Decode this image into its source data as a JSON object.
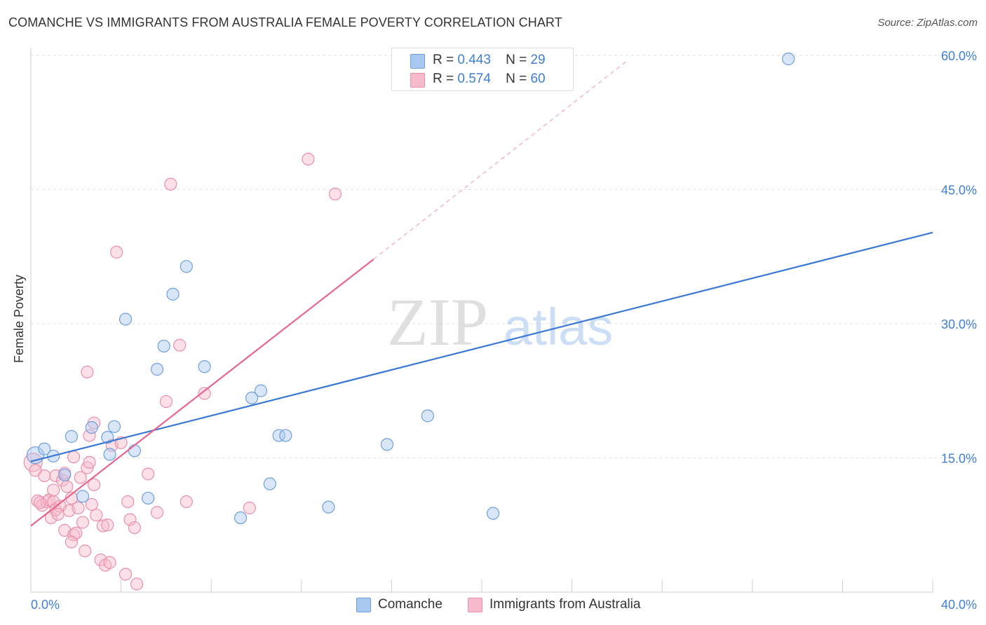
{
  "title": "COMANCHE VS IMMIGRANTS FROM AUSTRALIA FEMALE POVERTY CORRELATION CHART",
  "source": "Source: ZipAtlas.com",
  "watermark": {
    "zip": "ZIP",
    "atlas": "atlas"
  },
  "legend": {
    "r_label": "R =",
    "n_label": "N =",
    "series": [
      {
        "name": "Comanche",
        "r": "0.443",
        "n": "29",
        "color": "#a9c8ef",
        "stroke": "#6e9fdc"
      },
      {
        "name": "Immigrants from Australia",
        "r": "0.574",
        "n": "60",
        "color": "#f7bacb",
        "stroke": "#ea8fab"
      }
    ]
  },
  "chart_data": {
    "type": "scatter",
    "title": "COMANCHE VS IMMIGRANTS FROM AUSTRALIA FEMALE POVERTY CORRELATION CHART",
    "xlabel": "",
    "ylabel": "Female Poverty",
    "xlim": [
      0,
      40
    ],
    "ylim": [
      0,
      60
    ],
    "x_tick_labels": [
      "0.0%",
      "40.0%"
    ],
    "y_ticks": [
      15,
      30,
      45,
      60
    ],
    "y_tick_labels": [
      "15.0%",
      "30.0%",
      "45.0%",
      "60.0%"
    ],
    "grid": true,
    "series": [
      {
        "name": "Comanche",
        "color": "#a9c8ef",
        "line_color": "#3a78d4",
        "r": 0.443,
        "n": 29,
        "trend": {
          "x0": 0,
          "y0": 14.6,
          "x1": 40,
          "y1": 40.2
        },
        "points": [
          [
            0.2,
            15.3
          ],
          [
            0.6,
            16.0
          ],
          [
            1.0,
            15.2
          ],
          [
            1.5,
            13.1
          ],
          [
            1.8,
            17.4
          ],
          [
            2.3,
            10.7
          ],
          [
            2.7,
            18.4
          ],
          [
            3.4,
            17.3
          ],
          [
            3.5,
            15.4
          ],
          [
            3.7,
            18.5
          ],
          [
            4.2,
            30.5
          ],
          [
            4.6,
            15.8
          ],
          [
            5.2,
            10.5
          ],
          [
            5.6,
            24.9
          ],
          [
            5.9,
            27.5
          ],
          [
            6.3,
            33.3
          ],
          [
            6.9,
            36.4
          ],
          [
            7.7,
            25.2
          ],
          [
            9.3,
            8.3
          ],
          [
            9.8,
            21.7
          ],
          [
            10.2,
            22.5
          ],
          [
            10.6,
            12.1
          ],
          [
            11.0,
            17.5
          ],
          [
            11.3,
            17.5
          ],
          [
            13.2,
            9.5
          ],
          [
            15.8,
            16.5
          ],
          [
            17.6,
            19.7
          ],
          [
            20.5,
            8.8
          ],
          [
            33.6,
            59.6
          ]
        ]
      },
      {
        "name": "Immigrants from Australia",
        "color": "#f7bacb",
        "line_color": "#e8648f",
        "r": 0.574,
        "n": 60,
        "trend": {
          "x0": 0,
          "y0": 7.4,
          "x1": 15.2,
          "y1": 37.2
        },
        "trend_ext": {
          "x0": 15.2,
          "y0": 37.2,
          "x1": 26.5,
          "y1": 59.5
        },
        "points": [
          [
            0.1,
            14.5
          ],
          [
            0.2,
            13.6
          ],
          [
            0.3,
            10.2
          ],
          [
            0.5,
            9.7
          ],
          [
            0.7,
            10.1
          ],
          [
            0.8,
            10.3
          ],
          [
            0.9,
            8.3
          ],
          [
            1.0,
            10.1
          ],
          [
            1.1,
            9.2
          ],
          [
            1.1,
            13.0
          ],
          [
            1.3,
            9.6
          ],
          [
            1.4,
            12.5
          ],
          [
            1.5,
            13.3
          ],
          [
            1.5,
            6.9
          ],
          [
            1.6,
            11.8
          ],
          [
            1.7,
            9.1
          ],
          [
            1.8,
            10.5
          ],
          [
            1.9,
            15.1
          ],
          [
            1.9,
            6.4
          ],
          [
            2.0,
            6.6
          ],
          [
            2.1,
            9.4
          ],
          [
            2.2,
            12.8
          ],
          [
            2.3,
            7.8
          ],
          [
            2.4,
            4.6
          ],
          [
            2.5,
            13.9
          ],
          [
            2.6,
            14.5
          ],
          [
            2.6,
            17.5
          ],
          [
            2.7,
            9.8
          ],
          [
            2.8,
            18.9
          ],
          [
            2.8,
            12.0
          ],
          [
            3.1,
            3.6
          ],
          [
            3.2,
            7.4
          ],
          [
            3.3,
            3.0
          ],
          [
            3.4,
            7.5
          ],
          [
            3.5,
            3.3
          ],
          [
            3.6,
            16.4
          ],
          [
            3.8,
            38.0
          ],
          [
            4.0,
            16.7
          ],
          [
            4.2,
            2.0
          ],
          [
            4.3,
            10.1
          ],
          [
            4.4,
            8.1
          ],
          [
            4.6,
            7.2
          ],
          [
            4.7,
            0.9
          ],
          [
            5.2,
            13.2
          ],
          [
            5.6,
            8.9
          ],
          [
            6.0,
            21.3
          ],
          [
            6.2,
            45.6
          ],
          [
            6.6,
            27.6
          ],
          [
            6.9,
            10.1
          ],
          [
            7.7,
            22.2
          ],
          [
            9.7,
            9.4
          ],
          [
            12.3,
            48.4
          ],
          [
            13.5,
            44.5
          ],
          [
            2.5,
            24.6
          ],
          [
            0.4,
            10.0
          ],
          [
            1.2,
            8.7
          ],
          [
            0.6,
            13.0
          ],
          [
            1.8,
            5.6
          ],
          [
            2.9,
            8.6
          ],
          [
            1.0,
            11.4
          ]
        ]
      }
    ]
  }
}
